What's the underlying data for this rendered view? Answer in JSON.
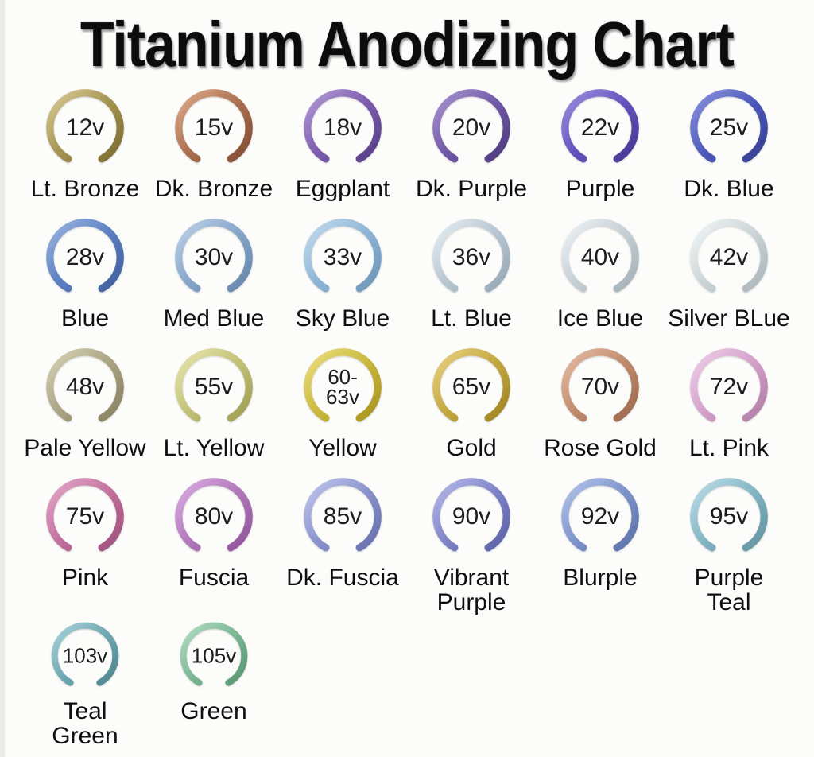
{
  "title": "Titanium Anodizing Chart",
  "chart_data": {
    "type": "table",
    "title": "Titanium Anodizing Chart",
    "columns_per_row": 6,
    "description_visible": "Open titanium rings colored by anodizing voltage; voltage shown inside each ring, color name below",
    "rows": [
      [
        {
          "voltage": "12v",
          "voltage_lines": [
            "12v"
          ],
          "name": "Lt. Bronze",
          "name_lines": [
            "Lt. Bronze"
          ],
          "color": "#a3924f",
          "color_light": "#d8cb96",
          "color_dark": "#77682f"
        },
        {
          "voltage": "15v",
          "voltage_lines": [
            "15v"
          ],
          "name": "Dk. Bronze",
          "name_lines": [
            "Dk. Bronze"
          ],
          "color": "#aa6f50",
          "color_light": "#dcab8b",
          "color_dark": "#7c4a30"
        },
        {
          "voltage": "18v",
          "voltage_lines": [
            "18v"
          ],
          "name": "Eggplant",
          "name_lines": [
            "Eggplant"
          ],
          "color": "#7b5cac",
          "color_light": "#b49ad8",
          "color_dark": "#533a80"
        },
        {
          "voltage": "20v",
          "voltage_lines": [
            "20v"
          ],
          "name": "Dk. Purple",
          "name_lines": [
            "Dk. Purple"
          ],
          "color": "#6f58a6",
          "color_light": "#a995d0",
          "color_dark": "#4a3779"
        },
        {
          "voltage": "22v",
          "voltage_lines": [
            "22v"
          ],
          "name": "Purple",
          "name_lines": [
            "Purple"
          ],
          "color": "#6253bd",
          "color_light": "#9c8fdd",
          "color_dark": "#41358e"
        },
        {
          "voltage": "25v",
          "voltage_lines": [
            "25v"
          ],
          "name": "Dk. Blue",
          "name_lines": [
            "Dk. Blue"
          ],
          "color": "#4d58bb",
          "color_light": "#8b93dc",
          "color_dark": "#333d8c"
        }
      ],
      [
        {
          "voltage": "28v",
          "voltage_lines": [
            "28v"
          ],
          "name": "Blue",
          "name_lines": [
            "Blue"
          ],
          "color": "#5b7ec1",
          "color_light": "#9ab5de",
          "color_dark": "#3d5c97"
        },
        {
          "voltage": "30v",
          "voltage_lines": [
            "30v"
          ],
          "name": "Med Blue",
          "name_lines": [
            "Med Blue"
          ],
          "color": "#86a5ca",
          "color_light": "#bdd2e6",
          "color_dark": "#6282a8"
        },
        {
          "voltage": "33v",
          "voltage_lines": [
            "33v"
          ],
          "name": "Sky Blue",
          "name_lines": [
            "Sky Blue"
          ],
          "color": "#8db4d6",
          "color_light": "#c3dcee",
          "color_dark": "#6a92b4"
        },
        {
          "voltage": "36v",
          "voltage_lines": [
            "36v"
          ],
          "name": "Lt. Blue",
          "name_lines": [
            "Lt. Blue"
          ],
          "color": "#b7c6d1",
          "color_light": "#e4edf2",
          "color_dark": "#93a5b2"
        },
        {
          "voltage": "40v",
          "voltage_lines": [
            "40v"
          ],
          "name": "Ice Blue",
          "name_lines": [
            "Ice Blue"
          ],
          "color": "#c5cfd4",
          "color_light": "#eef3f5",
          "color_dark": "#a2aeb4"
        },
        {
          "voltage": "42v",
          "voltage_lines": [
            "42v"
          ],
          "name": "Silver BLue",
          "name_lines": [
            "Silver BLue"
          ],
          "color": "#cbd4d7",
          "color_light": "#f2f6f7",
          "color_dark": "#a8b3b7"
        }
      ],
      [
        {
          "voltage": "48v",
          "voltage_lines": [
            "48v"
          ],
          "name": "Pale Yellow",
          "name_lines": [
            "Pale Yellow"
          ],
          "color": "#a9a382",
          "color_light": "#d7d2b6",
          "color_dark": "#847e5e"
        },
        {
          "voltage": "55v",
          "voltage_lines": [
            "55v"
          ],
          "name": "Lt. Yellow",
          "name_lines": [
            "Lt. Yellow"
          ],
          "color": "#c2c177",
          "color_light": "#e7e6ae",
          "color_dark": "#9b9a4f"
        },
        {
          "voltage": "60-63v",
          "voltage_lines": [
            "60-",
            "63v"
          ],
          "name": "Yellow",
          "name_lines": [
            "Yellow"
          ],
          "color": "#c9b73d",
          "color_light": "#ecdf7d",
          "color_dark": "#a3911c"
        },
        {
          "voltage": "65v",
          "voltage_lines": [
            "65v"
          ],
          "name": "Gold",
          "name_lines": [
            "Gold"
          ],
          "color": "#c3a73f",
          "color_light": "#e9d183",
          "color_dark": "#9c8120"
        },
        {
          "voltage": "70v",
          "voltage_lines": [
            "70v"
          ],
          "name": "Rose Gold",
          "name_lines": [
            "Rose Gold"
          ],
          "color": "#bf8a6c",
          "color_light": "#e6bda5",
          "color_dark": "#99664a"
        },
        {
          "voltage": "72v",
          "voltage_lines": [
            "72v"
          ],
          "name": "Lt. Pink",
          "name_lines": [
            "Lt. Pink"
          ],
          "color": "#d3a0c9",
          "color_light": "#efcde9",
          "color_dark": "#ad7aa3"
        }
      ],
      [
        {
          "voltage": "75v",
          "voltage_lines": [
            "75v"
          ],
          "name": "Pink",
          "name_lines": [
            "Pink"
          ],
          "color": "#c2709d",
          "color_light": "#e4a7c8",
          "color_dark": "#9b4d78"
        },
        {
          "voltage": "80v",
          "voltage_lines": [
            "80v"
          ],
          "name": "Fuscia",
          "name_lines": [
            "Fuscia"
          ],
          "color": "#b277bc",
          "color_light": "#d9ace0",
          "color_dark": "#8c5295"
        },
        {
          "voltage": "85v",
          "voltage_lines": [
            "85v"
          ],
          "name": "Dk. Fuscia",
          "name_lines": [
            "Dk. Fuscia"
          ],
          "color": "#8a92cd",
          "color_light": "#c0c6ec",
          "color_dark": "#656da8"
        },
        {
          "voltage": "90v",
          "voltage_lines": [
            "90v"
          ],
          "name": "Vibrant Purple",
          "name_lines": [
            "Vibrant",
            "Purple"
          ],
          "color": "#7e83c8",
          "color_light": "#b5b9e8",
          "color_dark": "#595ea3"
        },
        {
          "voltage": "92v",
          "voltage_lines": [
            "92v"
          ],
          "name": "Blurple",
          "name_lines": [
            "Blurple"
          ],
          "color": "#7d93cb",
          "color_light": "#b4c5ea",
          "color_dark": "#5870a6"
        },
        {
          "voltage": "95v",
          "voltage_lines": [
            "95v"
          ],
          "name": "Purple Teal",
          "name_lines": [
            "Purple",
            "Teal"
          ],
          "color": "#84b4c3",
          "color_light": "#bcdde8",
          "color_dark": "#5f919f"
        }
      ],
      [
        {
          "voltage": "103v",
          "voltage_lines": [
            "103v"
          ],
          "name": "Teal Green",
          "name_lines": [
            "Teal",
            "Green"
          ],
          "color": "#6ea7b1",
          "color_light": "#a8d3da",
          "color_dark": "#4c838d"
        },
        {
          "voltage": "105v",
          "voltage_lines": [
            "105v"
          ],
          "name": "Green",
          "name_lines": [
            "Green"
          ],
          "color": "#7cb794",
          "color_light": "#b2dcc4",
          "color_dark": "#57926f"
        }
      ]
    ]
  }
}
